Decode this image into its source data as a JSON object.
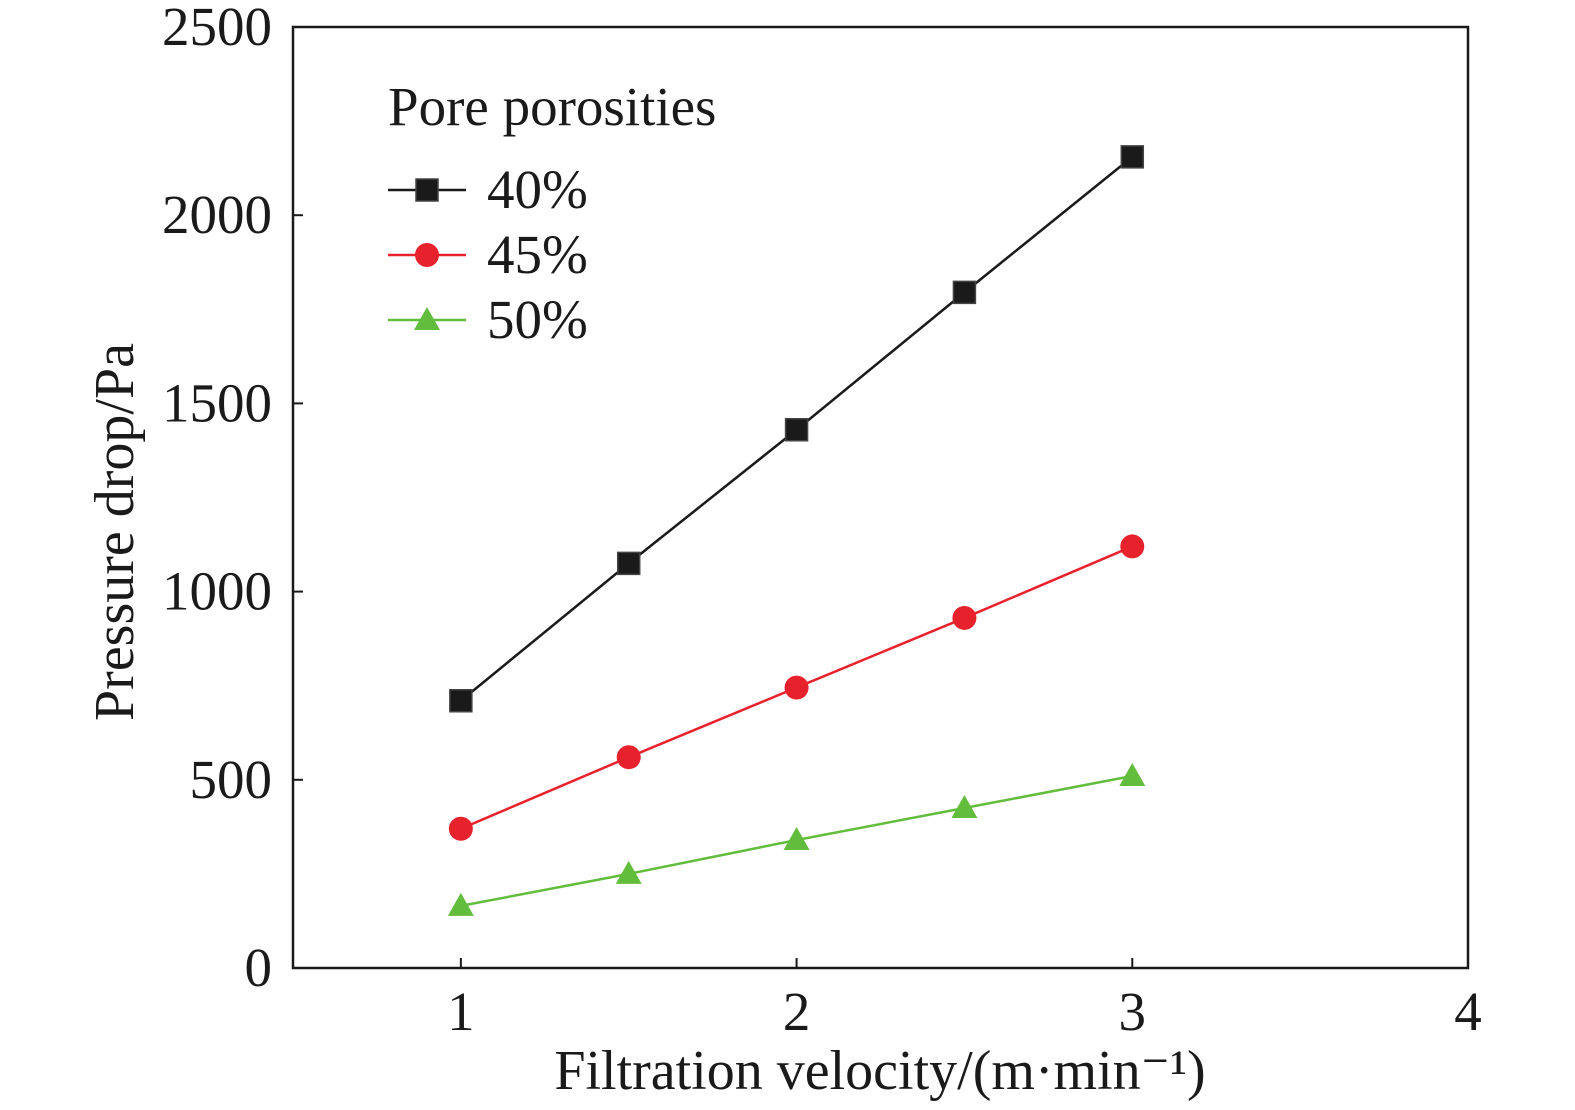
{
  "chart_data": {
    "type": "line",
    "x": [
      1,
      1.5,
      2,
      2.5,
      3
    ],
    "series": [
      {
        "name": "40%",
        "values": [
          710,
          1075,
          1430,
          1795,
          2155
        ],
        "color": "#1a1a1a",
        "marker": "square"
      },
      {
        "name": "45%",
        "values": [
          370,
          560,
          745,
          930,
          1120
        ],
        "color": "#e8222c",
        "marker": "circle"
      },
      {
        "name": "50%",
        "values": [
          165,
          250,
          340,
          425,
          510
        ],
        "color": "#62bd3c",
        "marker": "triangle"
      }
    ],
    "xlabel": "Filtration velocity/(m·min⁻¹)",
    "ylabel": "Pressure drop/Pa",
    "xlim": [
      0.5,
      4
    ],
    "ylim": [
      0,
      2500
    ],
    "xticks": [
      1,
      2,
      3,
      4
    ],
    "yticks": [
      0,
      500,
      1000,
      1500,
      2000,
      2500
    ],
    "legend": {
      "title": "Pore porosities",
      "position": "top-left"
    },
    "grid": false
  }
}
